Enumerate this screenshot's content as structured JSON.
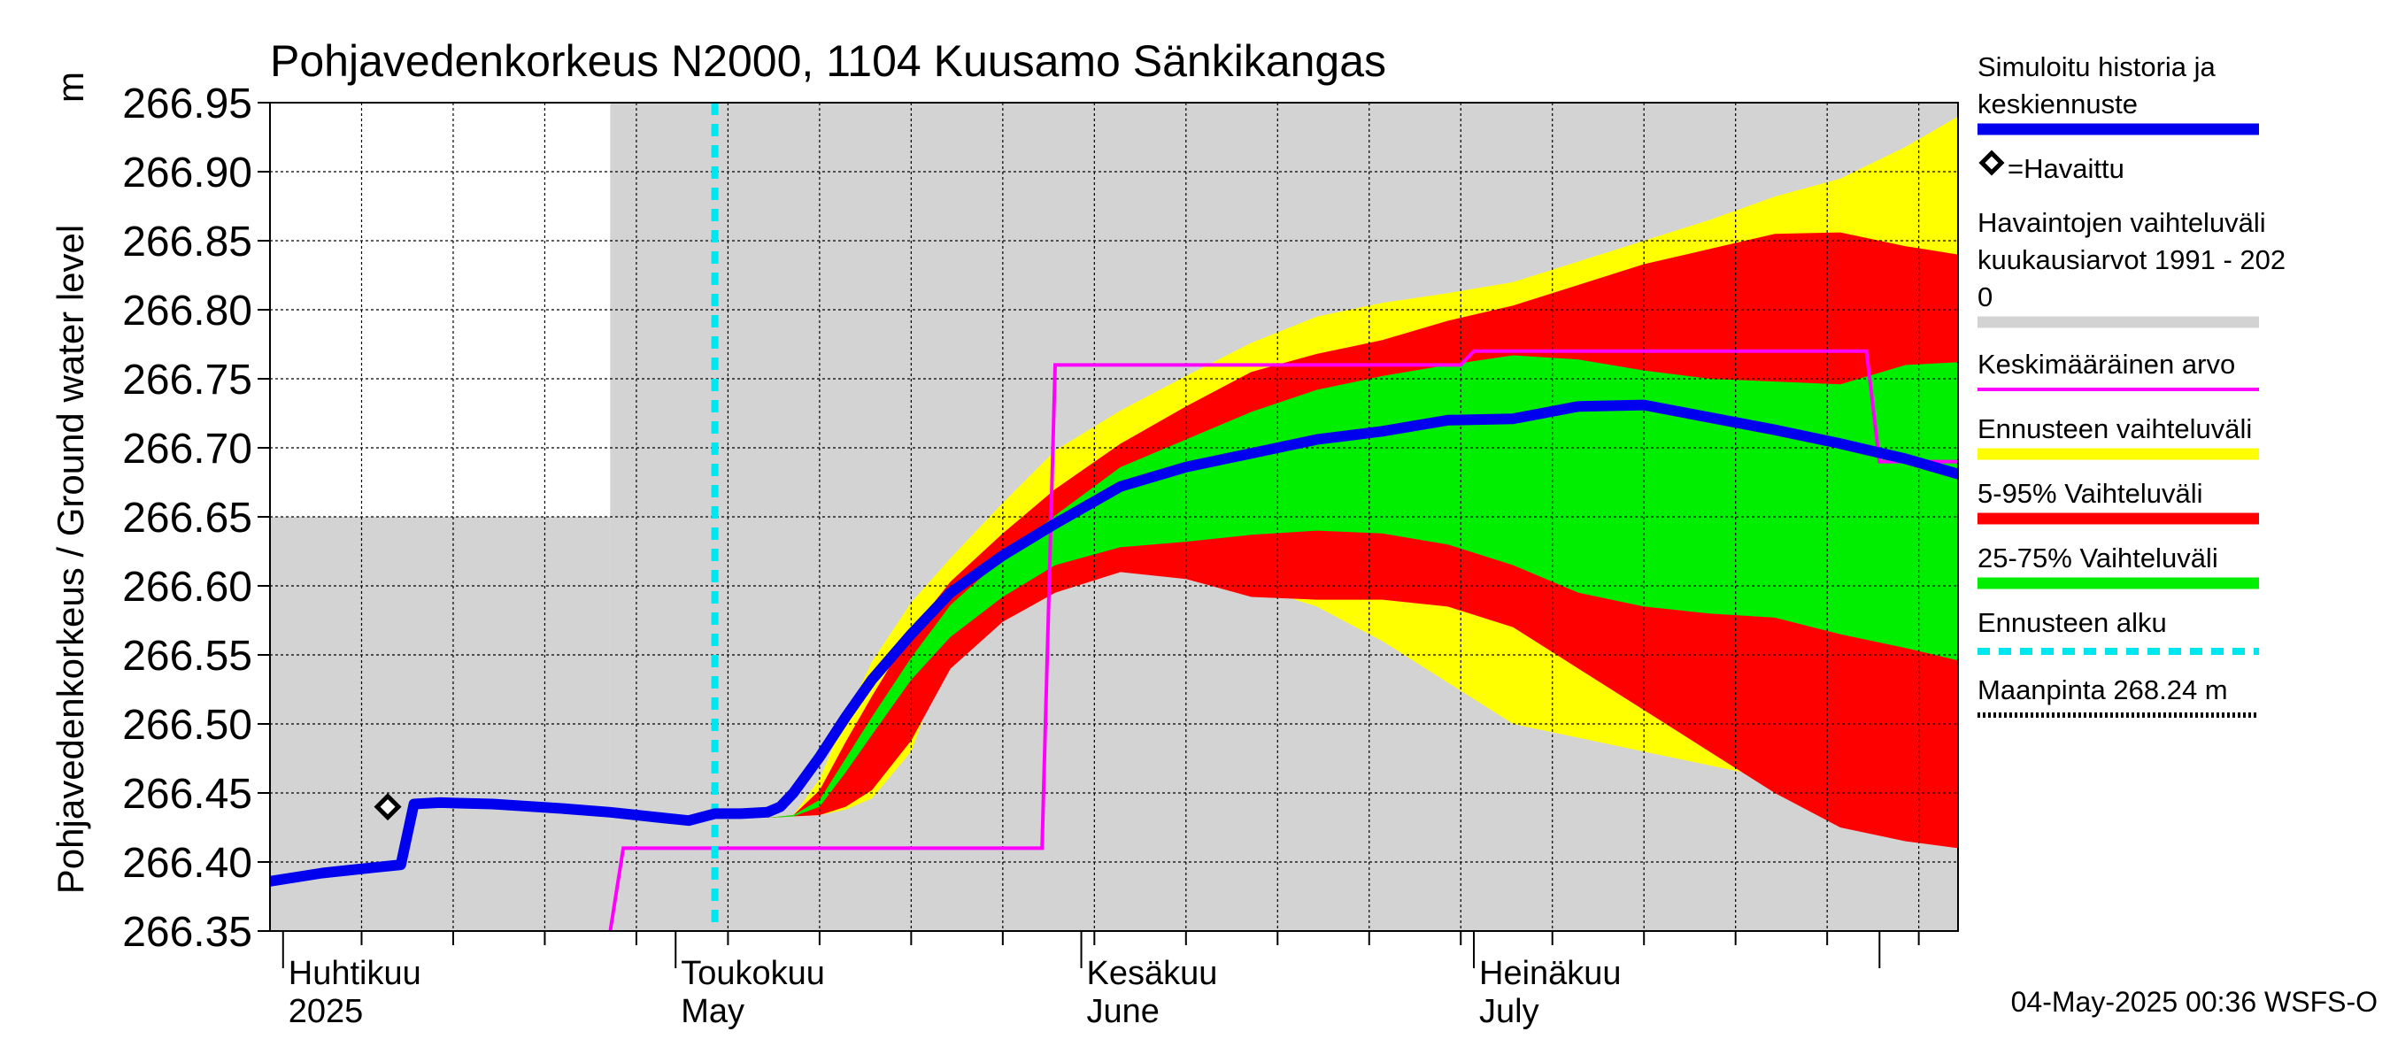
{
  "chart_data": {
    "type": "area",
    "title": "Pohjavedenkorkeus N2000, 1104 Kuusamo Sänkikangas",
    "ylabel": "Pohjavedenkorkeus / Ground water level",
    "yunit": "m",
    "ylim": [
      266.35,
      266.95
    ],
    "yticks": [
      266.35,
      266.4,
      266.45,
      266.5,
      266.55,
      266.6,
      266.65,
      266.7,
      266.75,
      266.8,
      266.85,
      266.9,
      266.95
    ],
    "ytick_labels": [
      "266.35",
      "266.40",
      "266.45",
      "266.50",
      "266.55",
      "266.60",
      "266.65",
      "266.70",
      "266.75",
      "266.80",
      "266.85",
      "266.90",
      "266.95"
    ],
    "xlim": [
      "2025-03-31",
      "2025-08-07"
    ],
    "x_month_labels": [
      {
        "date": "2025-04-01",
        "fi": "Huhtikuu",
        "en": "2025"
      },
      {
        "date": "2025-05-01",
        "fi": "Toukokuu",
        "en": "May"
      },
      {
        "date": "2025-06-01",
        "fi": "Kesäkuu",
        "en": "June"
      },
      {
        "date": "2025-07-01",
        "fi": "Heinäkuu",
        "en": "July"
      }
    ],
    "month_starts": [
      "2025-04-01",
      "2025-05-01",
      "2025-06-01",
      "2025-07-01",
      "2025-08-01"
    ],
    "forecast_start": "2025-05-04",
    "grid": true,
    "history_band": {
      "name": "Havaintojen vaihteluväli kuukausiarvot 1991 - 2020",
      "color": "#d3d3d3",
      "segments": [
        {
          "from": "2025-03-31",
          "to": "2025-04-26",
          "low": 266.35,
          "high": 266.65
        },
        {
          "from": "2025-04-26",
          "to": "2025-08-07",
          "low": 266.35,
          "high": 266.95
        }
      ]
    },
    "x_dates": [
      "2025-04-28",
      "2025-05-04",
      "2025-05-08",
      "2025-05-10",
      "2025-05-12",
      "2025-05-14",
      "2025-05-16",
      "2025-05-19",
      "2025-05-22",
      "2025-05-26",
      "2025-05-30",
      "2025-06-04",
      "2025-06-09",
      "2025-06-14",
      "2025-06-19",
      "2025-06-24",
      "2025-06-29",
      "2025-07-04",
      "2025-07-09",
      "2025-07-14",
      "2025-07-19",
      "2025-07-24",
      "2025-07-29",
      "2025-08-03",
      "2025-08-07"
    ],
    "mean_value": {
      "name": "Keskimääräinen arvo",
      "color": "#ff00ff",
      "points": [
        {
          "x": "2025-04-26",
          "y": 266.35
        },
        {
          "x": "2025-04-27",
          "y": 266.41
        },
        {
          "x": "2025-05-29",
          "y": 266.41
        },
        {
          "x": "2025-05-30",
          "y": 266.76
        },
        {
          "x": "2025-06-30",
          "y": 266.76
        },
        {
          "x": "2025-07-01",
          "y": 266.77
        },
        {
          "x": "2025-07-31",
          "y": 266.77
        },
        {
          "x": "2025-08-01",
          "y": 266.69
        },
        {
          "x": "2025-08-07",
          "y": 266.69
        }
      ]
    },
    "simulated": {
      "name": "Simuloitu historia ja keskiennuste",
      "color": "#0000ee",
      "points": [
        {
          "x": "2025-03-31",
          "y": 266.386
        },
        {
          "x": "2025-04-04",
          "y": 266.392
        },
        {
          "x": "2025-04-08",
          "y": 266.396
        },
        {
          "x": "2025-04-10",
          "y": 266.398
        },
        {
          "x": "2025-04-11",
          "y": 266.442
        },
        {
          "x": "2025-04-13",
          "y": 266.443
        },
        {
          "x": "2025-04-17",
          "y": 266.442
        },
        {
          "x": "2025-04-22",
          "y": 266.439
        },
        {
          "x": "2025-04-26",
          "y": 266.436
        },
        {
          "x": "2025-04-30",
          "y": 266.432
        },
        {
          "x": "2025-05-02",
          "y": 266.43
        },
        {
          "x": "2025-05-04",
          "y": 266.435
        },
        {
          "x": "2025-05-06",
          "y": 266.435
        },
        {
          "x": "2025-05-08",
          "y": 266.436
        },
        {
          "x": "2025-05-09",
          "y": 266.44
        },
        {
          "x": "2025-05-10",
          "y": 266.45
        },
        {
          "x": "2025-05-12",
          "y": 266.476
        },
        {
          "x": "2025-05-14",
          "y": 266.505
        },
        {
          "x": "2025-05-16",
          "y": 266.532
        },
        {
          "x": "2025-05-19",
          "y": 266.565
        },
        {
          "x": "2025-05-22",
          "y": 266.595
        },
        {
          "x": "2025-05-26",
          "y": 266.622
        },
        {
          "x": "2025-05-30",
          "y": 266.645
        },
        {
          "x": "2025-06-04",
          "y": 266.672
        },
        {
          "x": "2025-06-09",
          "y": 266.686
        },
        {
          "x": "2025-06-14",
          "y": 266.696
        },
        {
          "x": "2025-06-19",
          "y": 266.706
        },
        {
          "x": "2025-06-24",
          "y": 266.712
        },
        {
          "x": "2025-06-29",
          "y": 266.72
        },
        {
          "x": "2025-07-04",
          "y": 266.721
        },
        {
          "x": "2025-07-09",
          "y": 266.73
        },
        {
          "x": "2025-07-14",
          "y": 266.731
        },
        {
          "x": "2025-07-19",
          "y": 266.722
        },
        {
          "x": "2025-07-24",
          "y": 266.713
        },
        {
          "x": "2025-07-29",
          "y": 266.703
        },
        {
          "x": "2025-08-03",
          "y": 266.692
        },
        {
          "x": "2025-08-07",
          "y": 266.681
        }
      ]
    },
    "observed": {
      "name": "=Havaittu",
      "points": [
        {
          "x": "2025-04-09",
          "y": 266.44
        }
      ]
    },
    "forecast_range": {
      "name": "Ennusteen vaihteluväli",
      "color": "#ffff00",
      "low": [
        266.432,
        266.432,
        266.432,
        266.433,
        266.434,
        266.438,
        266.446,
        266.48,
        266.558,
        266.58,
        266.6,
        266.618,
        266.612,
        266.6,
        266.585,
        266.56,
        266.53,
        266.5,
        266.49,
        266.48,
        266.47,
        266.46,
        266.45,
        266.435,
        266.41
      ],
      "high": [
        266.432,
        266.432,
        266.432,
        266.434,
        266.46,
        266.505,
        266.545,
        266.588,
        266.62,
        266.66,
        266.698,
        266.727,
        266.752,
        266.776,
        266.795,
        266.805,
        266.812,
        266.82,
        266.835,
        266.85,
        266.865,
        266.882,
        266.895,
        266.918,
        266.94
      ]
    },
    "band_5_95": {
      "name": "5-95% Vaihteluväli",
      "color": "#ff0000",
      "low": [
        266.432,
        266.432,
        266.432,
        266.433,
        266.434,
        266.44,
        266.452,
        266.488,
        266.54,
        266.574,
        266.595,
        266.61,
        266.605,
        266.592,
        266.59,
        266.59,
        266.585,
        266.57,
        266.54,
        266.51,
        266.48,
        266.45,
        266.425,
        266.415,
        266.41
      ],
      "high": [
        266.432,
        266.432,
        266.432,
        266.434,
        266.452,
        266.487,
        266.52,
        266.567,
        266.603,
        266.638,
        266.67,
        266.703,
        266.73,
        266.755,
        266.768,
        266.778,
        266.792,
        266.803,
        266.818,
        266.833,
        266.844,
        266.855,
        266.856,
        266.846,
        266.84
      ]
    },
    "band_25_75": {
      "name": "25-75% Vaihteluväli",
      "color": "#00ee00",
      "low": [
        266.432,
        266.432,
        266.432,
        266.433,
        266.44,
        266.465,
        266.492,
        266.532,
        266.563,
        266.592,
        266.615,
        266.628,
        266.632,
        266.637,
        266.64,
        266.638,
        266.63,
        266.615,
        266.595,
        266.585,
        266.58,
        266.577,
        266.565,
        266.555,
        266.546
      ],
      "high": [
        266.432,
        266.432,
        266.432,
        266.434,
        266.445,
        266.475,
        266.505,
        266.548,
        266.586,
        266.62,
        266.651,
        266.686,
        266.706,
        266.726,
        266.742,
        266.752,
        266.76,
        266.767,
        266.764,
        266.756,
        266.75,
        266.748,
        266.746,
        266.76,
        266.762
      ]
    },
    "forecast_start_line": {
      "name": "Ennusteen alku",
      "color": "#00e5ee"
    },
    "ground_level": {
      "name": "Maanpinta 268.24 m",
      "value": 268.24
    },
    "legend_placement": "right",
    "legend": [
      {
        "key": "simulated",
        "lines": [
          "Simuloitu historia ja",
          "keskiennuste"
        ],
        "symbol": "thick-line",
        "color": "#0000ee"
      },
      {
        "key": "observed",
        "lines": [
          "=Havaittu"
        ],
        "symbol": "diamond",
        "color": "#000000"
      },
      {
        "key": "history",
        "lines": [
          "Havaintojen vaihteluväli",
          " kuukausiarvot 1991 - 202",
          "0"
        ],
        "symbol": "band",
        "color": "#d3d3d3"
      },
      {
        "key": "mean",
        "lines": [
          "Keskimääräinen arvo"
        ],
        "symbol": "thin-line",
        "color": "#ff00ff"
      },
      {
        "key": "forecast",
        "lines": [
          "Ennusteen vaihteluväli"
        ],
        "symbol": "band",
        "color": "#ffff00"
      },
      {
        "key": "band595",
        "lines": [
          "5-95% Vaihteluväli"
        ],
        "symbol": "band",
        "color": "#ff0000"
      },
      {
        "key": "band2575",
        "lines": [
          "25-75% Vaihteluväli"
        ],
        "symbol": "band",
        "color": "#00ee00"
      },
      {
        "key": "fstart",
        "lines": [
          "Ennusteen alku"
        ],
        "symbol": "dashed",
        "color": "#00e5ee"
      },
      {
        "key": "ground",
        "lines": [
          "Maanpinta 268.24 m"
        ],
        "symbol": "dotted",
        "color": "#000000"
      }
    ],
    "footer": "04-May-2025 00:36 WSFS-O"
  }
}
